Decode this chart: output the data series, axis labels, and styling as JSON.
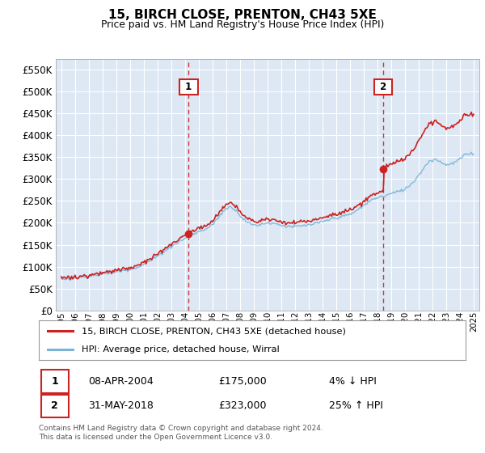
{
  "title": "15, BIRCH CLOSE, PRENTON, CH43 5XE",
  "subtitle": "Price paid vs. HM Land Registry's House Price Index (HPI)",
  "legend_line1": "15, BIRCH CLOSE, PRENTON, CH43 5XE (detached house)",
  "legend_line2": "HPI: Average price, detached house, Wirral",
  "annotation1_date": "08-APR-2004",
  "annotation1_price": "£175,000",
  "annotation1_hpi": "4% ↓ HPI",
  "annotation2_date": "31-MAY-2018",
  "annotation2_price": "£323,000",
  "annotation2_hpi": "25% ↑ HPI",
  "footer": "Contains HM Land Registry data © Crown copyright and database right 2024.\nThis data is licensed under the Open Government Licence v3.0.",
  "purchase1_year": 2004.27,
  "purchase1_value": 175000,
  "purchase2_year": 2018.42,
  "purchase2_value": 323000,
  "hpi_color": "#7ab4d8",
  "price_color": "#cc2222",
  "annotation_box_color": "#cc2222",
  "bg_color": "#dde8f4",
  "grid_color": "#ffffff",
  "ylim": [
    0,
    575000
  ],
  "yticks": [
    0,
    50000,
    100000,
    150000,
    200000,
    250000,
    300000,
    350000,
    400000,
    450000,
    500000,
    550000
  ],
  "xlim_start": 1994.6,
  "xlim_end": 2025.4
}
